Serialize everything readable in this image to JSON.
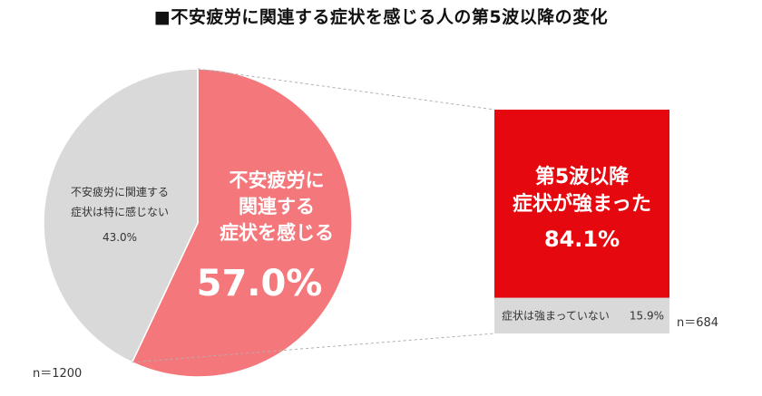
{
  "title": "■不安疲労に関連する症状を感じる人の第5波以降の変化",
  "chart_data": [
    {
      "type": "pie",
      "n_label": "n＝1200",
      "slices": [
        {
          "name_lines": [
            "不安疲労に",
            "関連する",
            "症状を感じる"
          ],
          "value": 57.0,
          "label": "57.0%",
          "color": "#f4777b"
        },
        {
          "name_lines": [
            "不安疲労に関連する",
            "症状は特に感じない"
          ],
          "value": 43.0,
          "label": "43.0%",
          "color": "#d9d9d9"
        }
      ]
    },
    {
      "type": "bar",
      "stacked": true,
      "n_label": "n＝684",
      "segments": [
        {
          "name_lines": [
            "第5波以降",
            "症状が強まった"
          ],
          "value": 84.1,
          "label": "84.1%",
          "color": "#e5090f"
        },
        {
          "name": "症状は強まっていない",
          "value": 15.9,
          "label": "15.9%",
          "color": "#d9d9d9"
        }
      ]
    }
  ]
}
